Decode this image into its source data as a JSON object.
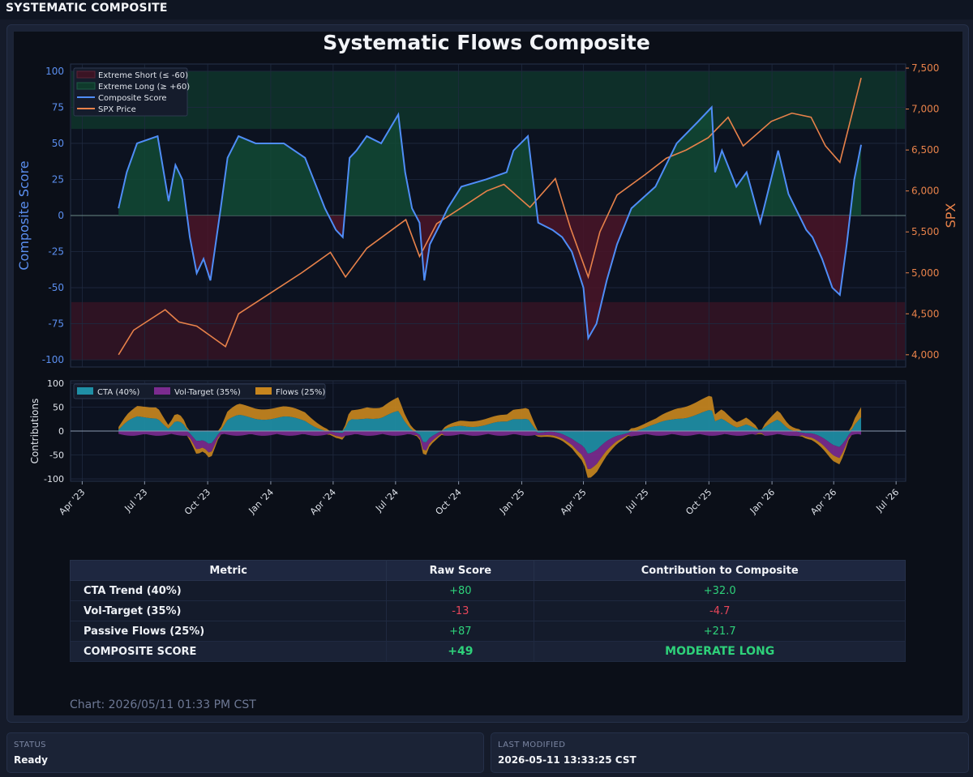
{
  "app": {
    "title": "SYSTEMATIC COMPOSITE"
  },
  "colors": {
    "composite": "#4f8df7",
    "spx": "#e8824a",
    "cta": "#1f8fa6",
    "vol": "#7b2b8f",
    "flows": "#c7851e",
    "long_zone": "#0f3a2c",
    "short_zone": "#3a1424",
    "positive": "#2ed17a",
    "negative": "#e8465a"
  },
  "chart_data": [
    {
      "type": "line",
      "title": "Systematic Flows Composite",
      "ylabel": "Composite Score",
      "y2label": "SPX",
      "ylim": [
        -105,
        105
      ],
      "y2lim": [
        3850,
        7550
      ],
      "yticks": [
        "100",
        "75",
        "50",
        "25",
        "0",
        "-25",
        "-50",
        "-75",
        "-100"
      ],
      "y2ticks": [
        "7,500",
        "7,000",
        "6,500",
        "6,000",
        "5,500",
        "5,000",
        "4,500",
        "4,000"
      ],
      "legend": [
        "Extreme Short (≤ -60)",
        "Extreme Long (≥ +60)",
        "Composite Score",
        "SPX Price"
      ],
      "legend_position": "top-left",
      "bands": {
        "extreme_short": [
          -100,
          -60
        ],
        "extreme_long": [
          60,
          100
        ]
      },
      "series": [
        {
          "name": "Composite Score",
          "x": [
            "2023-05-24",
            "2023-06-05",
            "2023-06-20",
            "2023-07-20",
            "2023-08-05",
            "2023-08-15",
            "2023-08-25",
            "2023-09-05",
            "2023-09-15",
            "2023-09-25",
            "2023-10-05",
            "2023-10-20",
            "2023-10-30",
            "2023-11-15",
            "2023-12-10",
            "2024-01-20",
            "2024-02-20",
            "2024-03-20",
            "2024-04-05",
            "2024-04-15",
            "2024-04-25",
            "2024-05-05",
            "2024-05-20",
            "2024-06-10",
            "2024-07-05",
            "2024-07-15",
            "2024-07-25",
            "2024-08-05",
            "2024-08-12",
            "2024-08-20",
            "2024-09-05",
            "2024-09-15",
            "2024-10-05",
            "2024-11-10",
            "2024-12-10",
            "2024-12-20",
            "2025-01-10",
            "2025-01-25",
            "2025-02-15",
            "2025-03-01",
            "2025-03-15",
            "2025-04-01",
            "2025-04-08",
            "2025-04-20",
            "2025-05-05",
            "2025-05-20",
            "2025-06-10",
            "2025-07-15",
            "2025-08-15",
            "2025-09-15",
            "2025-10-05",
            "2025-10-10",
            "2025-10-20",
            "2025-11-10",
            "2025-11-25",
            "2025-12-15",
            "2026-01-10",
            "2026-01-25",
            "2026-02-20",
            "2026-03-01",
            "2026-03-15",
            "2026-03-30",
            "2026-04-10",
            "2026-04-20",
            "2026-05-01",
            "2026-05-11"
          ],
          "values": [
            5,
            30,
            50,
            55,
            10,
            35,
            25,
            -15,
            -40,
            -30,
            -45,
            5,
            40,
            55,
            50,
            50,
            40,
            5,
            -10,
            -15,
            40,
            45,
            55,
            50,
            70,
            30,
            5,
            -5,
            -45,
            -20,
            -5,
            5,
            20,
            25,
            30,
            45,
            55,
            -5,
            -10,
            -15,
            -25,
            -50,
            -85,
            -75,
            -45,
            -20,
            5,
            20,
            50,
            65,
            75,
            30,
            45,
            20,
            30,
            -5,
            45,
            15,
            -10,
            -15,
            -30,
            -50,
            -55,
            -20,
            25,
            49
          ]
        },
        {
          "name": "SPX Price",
          "x": [
            "2023-05-24",
            "2023-06-15",
            "2023-07-31",
            "2023-08-20",
            "2023-09-15",
            "2023-10-27",
            "2023-11-15",
            "2023-12-31",
            "2024-02-15",
            "2024-03-28",
            "2024-04-19",
            "2024-05-20",
            "2024-07-16",
            "2024-08-05",
            "2024-08-30",
            "2024-10-15",
            "2024-11-11",
            "2024-12-06",
            "2025-01-13",
            "2025-02-19",
            "2025-03-13",
            "2025-04-08",
            "2025-04-25",
            "2025-05-20",
            "2025-06-30",
            "2025-07-31",
            "2025-08-29",
            "2025-09-30",
            "2025-10-29",
            "2025-11-20",
            "2025-12-31",
            "2026-01-30",
            "2026-02-27",
            "2026-03-20",
            "2026-04-10",
            "2026-05-11"
          ],
          "values": [
            4000,
            4300,
            4550,
            4400,
            4350,
            4100,
            4500,
            4750,
            5000,
            5250,
            4950,
            5300,
            5650,
            5200,
            5600,
            5850,
            6000,
            6080,
            5800,
            6150,
            5550,
            4950,
            5500,
            5950,
            6200,
            6400,
            6500,
            6650,
            6900,
            6550,
            6850,
            6950,
            6900,
            6550,
            6350,
            7380
          ]
        }
      ]
    },
    {
      "type": "area",
      "ylabel": "Contributions",
      "ylim": [
        -105,
        105
      ],
      "yticks": [
        "100",
        "50",
        "0",
        "-50",
        "-100"
      ],
      "xticks": [
        "Apr '23",
        "Jul '23",
        "Oct '23",
        "Jan '24",
        "Apr '24",
        "Jul '24",
        "Oct '24",
        "Jan '25",
        "Apr '25",
        "Jul '25",
        "Oct '25",
        "Jan '26",
        "Apr '26",
        "Jul '26"
      ],
      "legend": [
        "CTA (40%)",
        "Vol-Target (35%)",
        "Flows (25%)"
      ],
      "legend_position": "top-left",
      "stacked": true
    }
  ],
  "table": {
    "headers": [
      "Metric",
      "Raw Score",
      "Contribution to Composite"
    ],
    "rows": [
      {
        "metric": "CTA Trend (40%)",
        "raw": "+80",
        "contribution": "+32.0"
      },
      {
        "metric": "Vol-Target (35%)",
        "raw": "-13",
        "contribution": "-4.7"
      },
      {
        "metric": "Passive Flows (25%)",
        "raw": "+87",
        "contribution": "+21.7"
      }
    ],
    "composite": {
      "metric": "COMPOSITE SCORE",
      "raw": "+49",
      "contribution": "MODERATE LONG"
    }
  },
  "footnote": "Chart: 2026/05/11 01:33 PM CST",
  "status": {
    "label": "STATUS",
    "value": "Ready"
  },
  "last_modified": {
    "label": "LAST MODIFIED",
    "value": "2026-05-11 13:33:25 CST"
  }
}
